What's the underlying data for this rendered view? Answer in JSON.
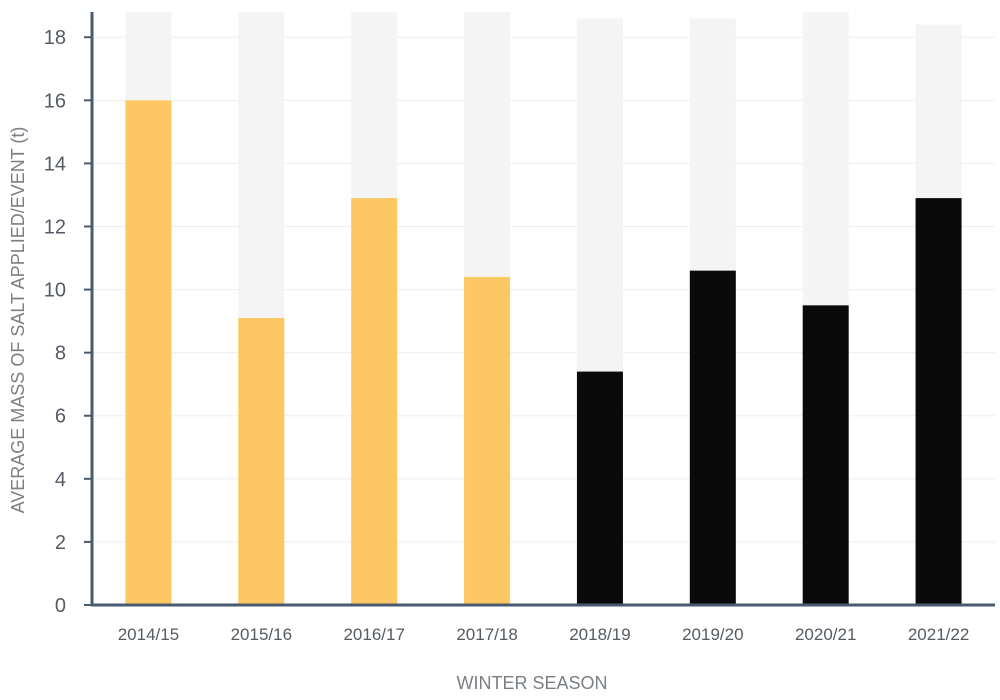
{
  "chart_data": {
    "type": "bar",
    "title": "",
    "xlabel": "WINTER SEASON",
    "ylabel": "AVERAGE MASS OF SALT APPLIED/EVENT (t)",
    "categories": [
      "2014/15",
      "2015/16",
      "2016/17",
      "2017/18",
      "2018/19",
      "2019/20",
      "2020/21",
      "2021/22"
    ],
    "values": [
      16.0,
      9.1,
      12.9,
      10.4,
      7.4,
      10.6,
      9.5,
      12.9
    ],
    "background_values": [
      18.8,
      18.8,
      18.8,
      18.8,
      18.6,
      18.6,
      18.8,
      18.4
    ],
    "bar_colors": [
      "#fdc763",
      "#fdc763",
      "#fdc763",
      "#fdc763",
      "#0a0a0a",
      "#0a0a0a",
      "#0a0a0a",
      "#0a0a0a"
    ],
    "background_bar_color": "#f4f4f4",
    "yticks": [
      0,
      2,
      4,
      6,
      8,
      10,
      12,
      14,
      16,
      18
    ],
    "ylim": [
      0,
      18.8
    ],
    "grid": true,
    "legend": "none"
  },
  "colors": {
    "axis": "#4a5a6e",
    "gridline": "#eeeeee"
  }
}
